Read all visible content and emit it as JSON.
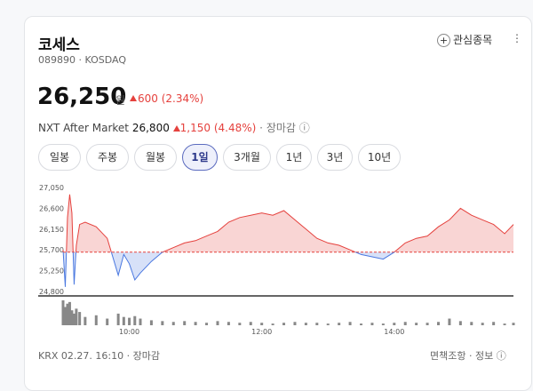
{
  "header": {
    "name": "코세스",
    "code": "089890",
    "market": "KOSDAQ",
    "watch": "관심종목"
  },
  "quote": {
    "price": "26,250",
    "unit": "원",
    "change": "600",
    "change_pct": "(2.34%)"
  },
  "after_market": {
    "label": "NXT After Market",
    "price": "26,800",
    "change": "1,150",
    "change_pct": "(4.48%)",
    "status": "장마감"
  },
  "tabs": {
    "items": [
      "일봉",
      "주봉",
      "월봉",
      "1일",
      "3개월",
      "1년",
      "3년",
      "10년"
    ],
    "active": 3
  },
  "chart_data": {
    "type": "line",
    "x": [
      "09:00",
      "09:02",
      "09:04",
      "09:06",
      "09:08",
      "09:10",
      "09:12",
      "09:15",
      "09:20",
      "09:30",
      "09:40",
      "09:50",
      "09:55",
      "10:00",
      "10:05",
      "10:10",
      "10:20",
      "10:30",
      "10:40",
      "10:50",
      "11:00",
      "11:10",
      "11:20",
      "11:30",
      "11:40",
      "11:50",
      "12:00",
      "12:10",
      "12:20",
      "12:30",
      "12:40",
      "12:50",
      "13:00",
      "13:10",
      "13:20",
      "13:30",
      "13:40",
      "13:50",
      "14:00",
      "14:10",
      "14:20",
      "14:30",
      "14:40",
      "14:50",
      "15:00",
      "15:10",
      "15:20",
      "15:30",
      "15:40",
      "15:48"
    ],
    "values": [
      25700,
      24900,
      26400,
      26900,
      26500,
      24950,
      25800,
      26250,
      26300,
      26200,
      25950,
      25150,
      25600,
      25400,
      25050,
      25200,
      25450,
      25650,
      25750,
      25850,
      25900,
      26000,
      26100,
      26300,
      26400,
      26450,
      26500,
      26450,
      26550,
      26350,
      26150,
      25950,
      25850,
      25800,
      25700,
      25600,
      25550,
      25500,
      25650,
      25850,
      25950,
      26000,
      26200,
      26350,
      26600,
      26450,
      26350,
      26250,
      26050,
      26250
    ],
    "volume": [
      30,
      22,
      26,
      28,
      18,
      14,
      20,
      16,
      10,
      12,
      8,
      14,
      10,
      9,
      11,
      8,
      6,
      5,
      4,
      5,
      4,
      3,
      5,
      4,
      3,
      4,
      3,
      2,
      3,
      4,
      3,
      3,
      2,
      3,
      4,
      2,
      3,
      2,
      3,
      4,
      3,
      3,
      4,
      8,
      5,
      4,
      3,
      4,
      2,
      3
    ],
    "color_up": "#e5413d",
    "color_down": "#4a78e0",
    "baseline": 25650,
    "ylim": [
      24800,
      27050
    ],
    "yticks": [
      {
        "value": 27050,
        "label": "27,050"
      },
      {
        "value": 26600,
        "label": "26,600"
      },
      {
        "value": 26150,
        "label": "26,150"
      },
      {
        "value": 25700,
        "label": "25,700"
      },
      {
        "value": 25250,
        "label": "25,250"
      },
      {
        "value": 24800,
        "label": "24,800"
      }
    ],
    "xlim": [
      "09:00",
      "15:48"
    ],
    "xticks": [
      "10:00",
      "12:00",
      "14:00"
    ]
  },
  "footer": {
    "source": "KRX 02.27. 16:10",
    "status": "장마감",
    "disclaimer": "면책조항",
    "info": "정보"
  }
}
